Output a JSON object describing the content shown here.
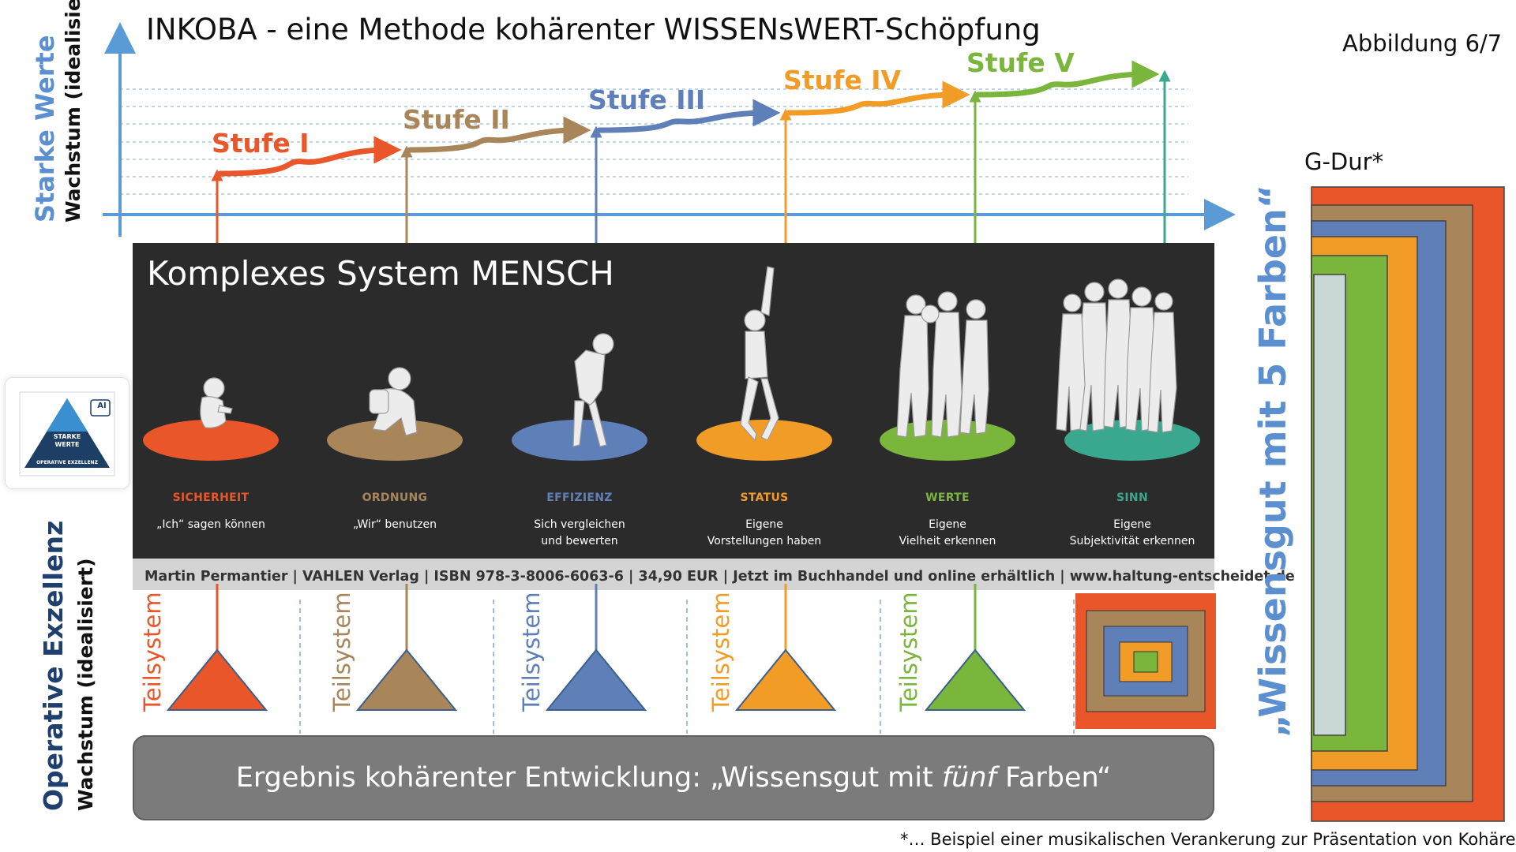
{
  "header": {
    "title": "INKOBA - eine Methode kohärenter WISSENsWERT-Schöpfung",
    "figure_number": "Abbildung 6/7"
  },
  "top_axis": {
    "label_main": "Starke Werte",
    "label_sub": "Wachstum (idealisiert)"
  },
  "bottom_axis": {
    "label_main": "Operative Exzellenz",
    "label_sub": "Wachstum (idealisiert)"
  },
  "stufen": [
    {
      "label": "Stufe I",
      "color": "#e8562a"
    },
    {
      "label": "Stufe II",
      "color": "#a9865a"
    },
    {
      "label": "Stufe III",
      "color": "#5f7fb8"
    },
    {
      "label": "Stufe IV",
      "color": "#f29c28"
    },
    {
      "label": "Stufe V",
      "color": "#7ab53c"
    }
  ],
  "panel": {
    "title": "Komplexes System MENSCH",
    "stages": [
      {
        "label": "SICHERHEIT",
        "desc_1": "„Ich“ sagen können",
        "desc_2": "",
        "color": "#e8562a"
      },
      {
        "label": "ORDNUNG",
        "desc_1": "„Wir“ benutzen",
        "desc_2": "",
        "color": "#a9865a"
      },
      {
        "label": "EFFIZIENZ",
        "desc_1": "Sich vergleichen",
        "desc_2": "und bewerten",
        "color": "#5f7fb8"
      },
      {
        "label": "STATUS",
        "desc_1": "Eigene",
        "desc_2": "Vorstellungen haben",
        "color": "#f29c28"
      },
      {
        "label": "WERTE",
        "desc_1": "Eigene",
        "desc_2": "Vielheit erkennen",
        "color": "#7ab53c"
      },
      {
        "label": "SINN",
        "desc_1": "Eigene",
        "desc_2": "Subjektivität erkennen",
        "color": "#3aa88f"
      }
    ],
    "book_info": "Martin Permantier | VAHLEN Verlag | ISBN 978-3-8006-6063-6 | 34,90 EUR | Jetzt im Buchhandel und online erhältlich | www.haltung-entscheidet.de"
  },
  "teilsystem_label": "Teilsystem",
  "result": {
    "prefix": "Ergebnis kohärenter Entwicklung: „Wissensgut mit ",
    "emphasis": "fünf",
    "suffix": " Farben“"
  },
  "right_side": {
    "gdur_label": "G-Dur*",
    "vertical_text": "„Wissensgut mit 5 Farben“"
  },
  "logo": {
    "line_1": "STARKE",
    "line_2": "WERTE",
    "line_3": "OPERATIVE EXZELLENZ",
    "badge": "AI"
  },
  "footnote": "*… Beispiel einer musikalischen Verankerung zur Präsentation von Kohärenz"
}
